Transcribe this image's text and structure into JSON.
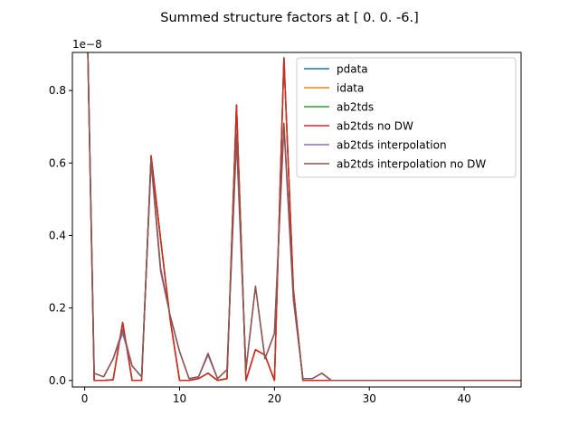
{
  "chart_data": {
    "type": "line",
    "title": "Summed structure factors at [ 0.  0. -6.]",
    "xlabel": "",
    "ylabel": "",
    "xlim": [
      -1.3,
      46
    ],
    "ylim": [
      -0.018,
      0.905
    ],
    "offset_text": "1e−8",
    "x_ticks": [
      0,
      10,
      20,
      30,
      40
    ],
    "y_ticks": [
      0.0,
      0.2,
      0.4,
      0.6,
      0.8
    ],
    "y_tick_labels": [
      "0.0",
      "0.2",
      "0.4",
      "0.6",
      "0.8"
    ],
    "grid": false,
    "legend_position": "upper right",
    "x": [
      0,
      1,
      2,
      3,
      4,
      5,
      6,
      7,
      8,
      9,
      10,
      11,
      12,
      13,
      14,
      15,
      16,
      17,
      18,
      19,
      20,
      21,
      22,
      23,
      24,
      25,
      26,
      27,
      28,
      29,
      30,
      31,
      32,
      33,
      34,
      35,
      36,
      37,
      38,
      39,
      40,
      41,
      42,
      43,
      44,
      45,
      46
    ],
    "series": [
      {
        "name": "pdata",
        "color": "#1f77b4",
        "values": [
          1.35,
          0,
          0,
          0.002,
          0.16,
          0,
          0,
          0.62,
          0.39,
          0.17,
          0,
          0,
          0.005,
          0.02,
          0,
          0.005,
          0.76,
          0,
          0.085,
          0.07,
          0,
          0.89,
          0.25,
          0,
          0,
          0,
          0,
          0,
          0,
          0,
          0,
          0,
          0,
          0,
          0,
          0,
          0,
          0,
          0,
          0,
          0,
          0,
          0,
          0,
          0,
          0,
          0
        ]
      },
      {
        "name": "idata",
        "color": "#ff7f0e",
        "values": [
          1.35,
          0,
          0,
          0.002,
          0.16,
          0,
          0,
          0.62,
          0.39,
          0.17,
          0,
          0,
          0.005,
          0.02,
          0,
          0.005,
          0.76,
          0,
          0.085,
          0.07,
          0,
          0.89,
          0.25,
          0,
          0,
          0,
          0,
          0,
          0,
          0,
          0,
          0,
          0,
          0,
          0,
          0,
          0,
          0,
          0,
          0,
          0,
          0,
          0,
          0,
          0,
          0,
          0
        ]
      },
      {
        "name": "ab2tds",
        "color": "#2ca02c",
        "values": [
          1.35,
          0,
          0,
          0.002,
          0.16,
          0,
          0,
          0.62,
          0.39,
          0.17,
          0,
          0,
          0.005,
          0.02,
          0,
          0.005,
          0.76,
          0,
          0.085,
          0.07,
          0,
          0.89,
          0.25,
          0,
          0,
          0,
          0,
          0,
          0,
          0,
          0,
          0,
          0,
          0,
          0,
          0,
          0,
          0,
          0,
          0,
          0,
          0,
          0,
          0,
          0,
          0,
          0
        ]
      },
      {
        "name": "ab2tds no DW",
        "color": "#d62728",
        "values": [
          1.35,
          0,
          0,
          0.002,
          0.16,
          0,
          0,
          0.62,
          0.39,
          0.17,
          0,
          0,
          0.005,
          0.02,
          0,
          0.005,
          0.76,
          0,
          0.085,
          0.07,
          0,
          0.89,
          0.25,
          0,
          0,
          0,
          0,
          0,
          0,
          0,
          0,
          0,
          0,
          0,
          0,
          0,
          0,
          0,
          0,
          0,
          0,
          0,
          0,
          0,
          0,
          0,
          0
        ]
      },
      {
        "name": "ab2tds interpolation",
        "color": "#9467bd",
        "values": [
          1.35,
          0.02,
          0.01,
          0.06,
          0.13,
          0.04,
          0.01,
          0.6,
          0.3,
          0.18,
          0.08,
          0.005,
          0.01,
          0.07,
          0.005,
          0.03,
          0.66,
          0.03,
          0.26,
          0.06,
          0.13,
          0.7,
          0.22,
          0.005,
          0.005,
          0.02,
          0,
          0,
          0,
          0,
          0,
          0,
          0,
          0,
          0,
          0,
          0,
          0,
          0,
          0,
          0,
          0,
          0,
          0,
          0,
          0,
          0
        ]
      },
      {
        "name": "ab2tds interpolation no DW",
        "color": "#8c564b",
        "values": [
          1.35,
          0.02,
          0.01,
          0.06,
          0.14,
          0.04,
          0.01,
          0.61,
          0.31,
          0.18,
          0.08,
          0.005,
          0.01,
          0.075,
          0.005,
          0.03,
          0.68,
          0.03,
          0.26,
          0.06,
          0.13,
          0.71,
          0.23,
          0.005,
          0.005,
          0.02,
          0,
          0,
          0,
          0,
          0,
          0,
          0,
          0,
          0,
          0,
          0,
          0,
          0,
          0,
          0,
          0,
          0,
          0,
          0,
          0,
          0
        ]
      }
    ]
  }
}
